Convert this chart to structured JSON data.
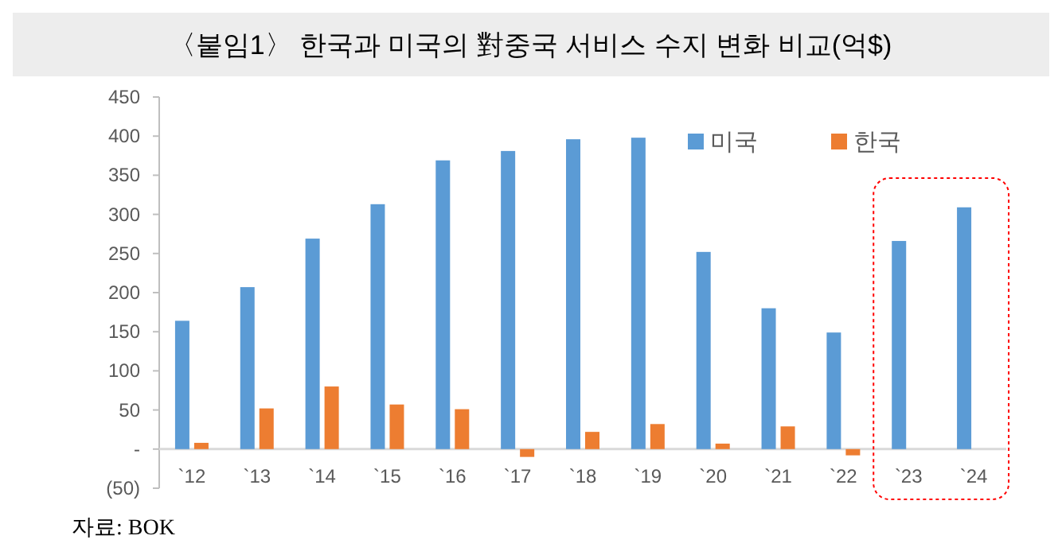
{
  "chart_data": {
    "type": "bar",
    "title": "〈붙임1〉 한국과 미국의 對중국 서비스 수지 변화 비교(억$)",
    "categories": [
      "`12",
      "`13",
      "`14",
      "`15",
      "`16",
      "`17",
      "`18",
      "`19",
      "`20",
      "`21",
      "`22",
      "`23",
      "`24"
    ],
    "series": [
      {
        "name": "미국",
        "color": "#5b9bd5",
        "values": [
          164,
          207,
          269,
          313,
          369,
          381,
          396,
          398,
          252,
          180,
          149,
          266,
          309
        ]
      },
      {
        "name": "한국",
        "color": "#ed7d31",
        "values": [
          8,
          52,
          80,
          57,
          51,
          -10,
          22,
          32,
          7,
          29,
          -8,
          null,
          null
        ]
      }
    ],
    "ylim": [
      -50,
      450
    ],
    "yticks": [
      {
        "value": -50,
        "label": "(50)"
      },
      {
        "value": 0,
        "label": "-"
      },
      50,
      100,
      150,
      200,
      250,
      300,
      350,
      400,
      450
    ],
    "legend": "top right",
    "grid": false,
    "annotations": [
      "자료: BOK"
    ]
  }
}
